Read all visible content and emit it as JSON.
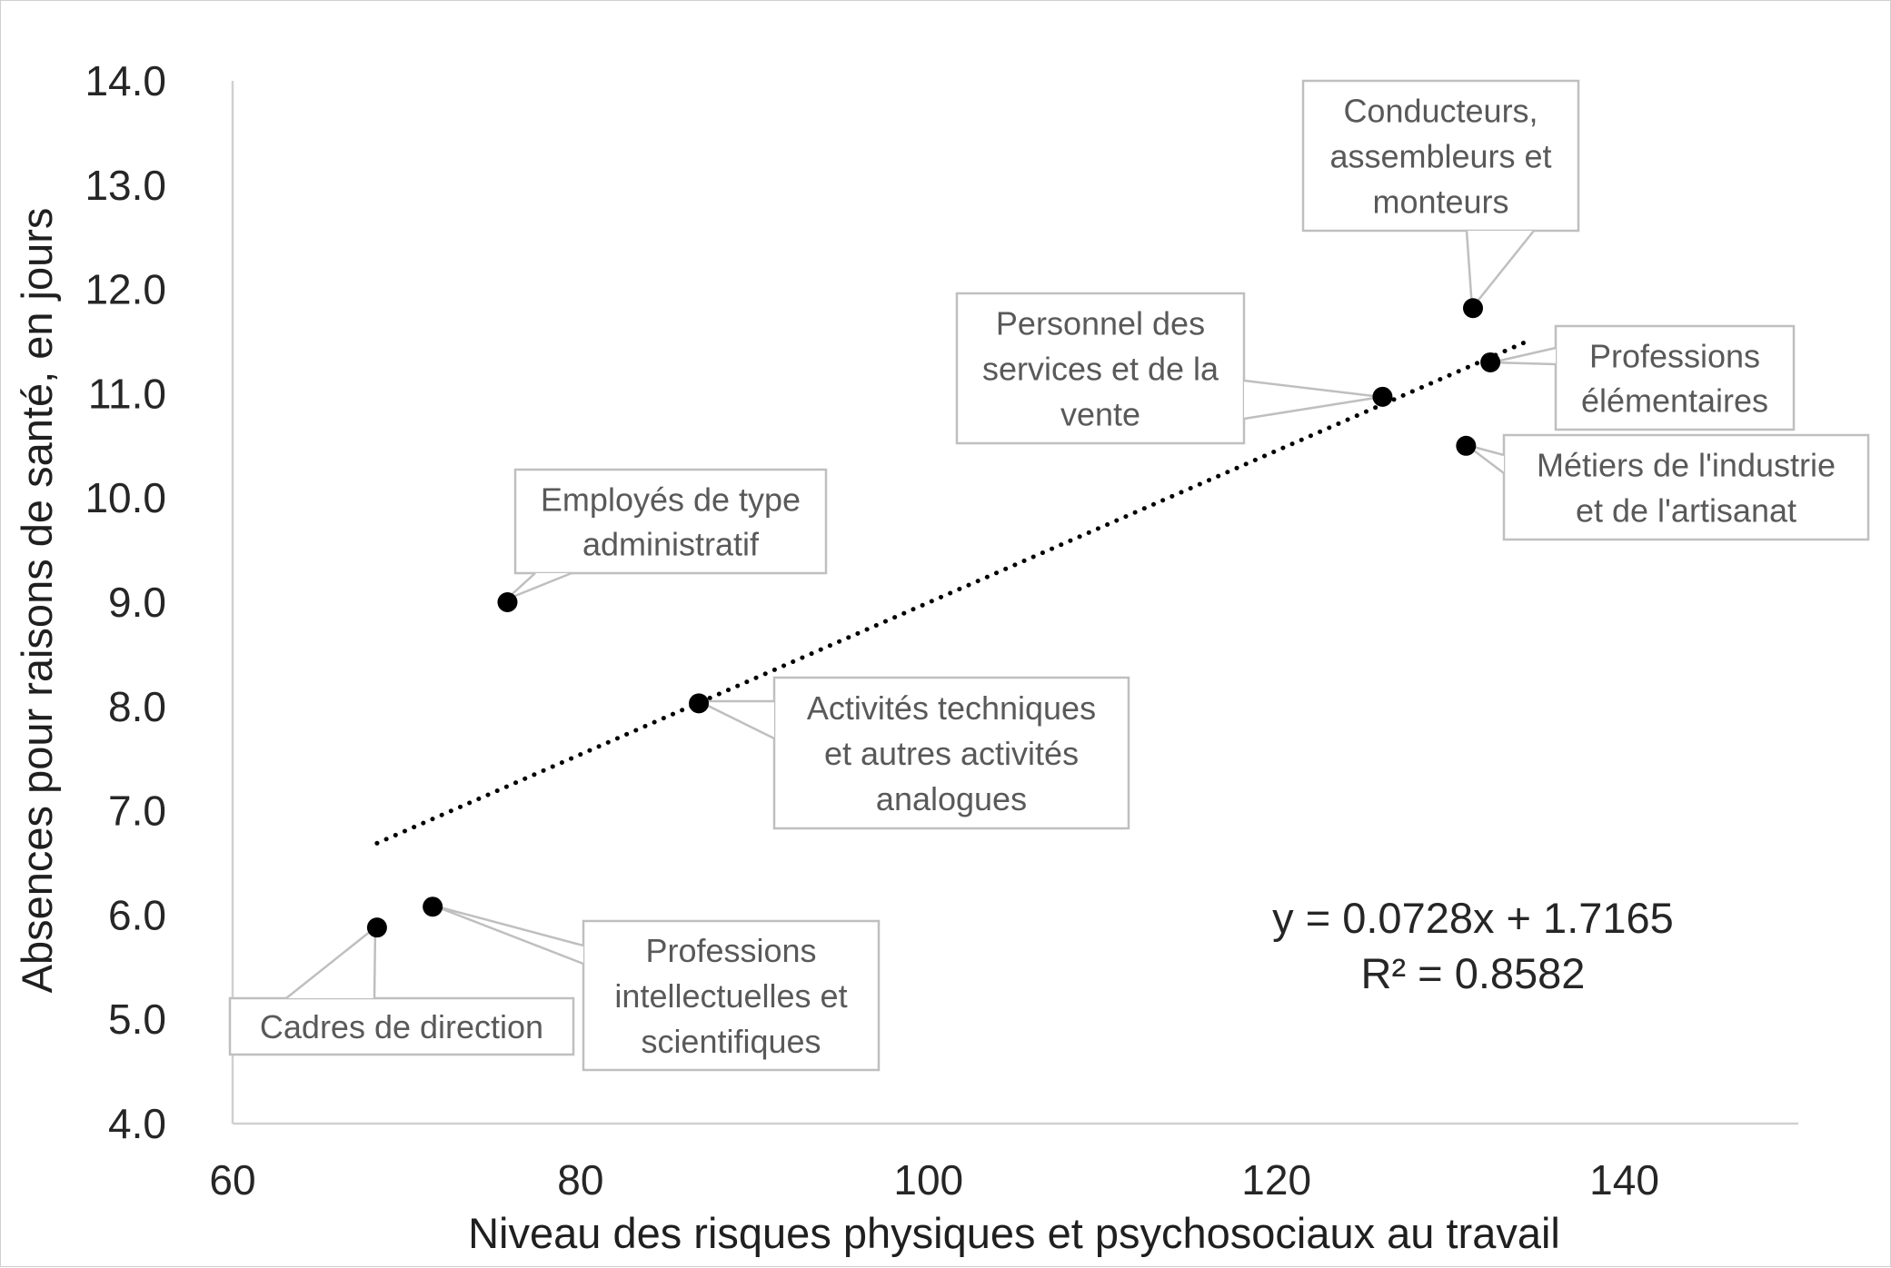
{
  "chart_data": {
    "type": "scatter",
    "title": "",
    "xlabel": "Niveau des risques physiques et psychosociaux au travail",
    "ylabel": "Absences pour raisons de santé, en jours",
    "xlim": [
      60,
      150
    ],
    "ylim": [
      4.0,
      14.0
    ],
    "x_ticks": [
      "60",
      "80",
      "100",
      "120",
      "140"
    ],
    "y_ticks": [
      "4.0",
      "5.0",
      "6.0",
      "7.0",
      "8.0",
      "9.0",
      "10.0",
      "11.0",
      "12.0",
      "13.0",
      "14.0"
    ],
    "grid": false,
    "legend": "none",
    "points": [
      {
        "label_lines": [
          "Cadres de direction"
        ],
        "x": 68.3,
        "y": 5.88
      },
      {
        "label_lines": [
          "Professions",
          "intellectuelles et",
          "scientifiques"
        ],
        "x": 71.5,
        "y": 6.08
      },
      {
        "label_lines": [
          "Employés de type",
          "administratif"
        ],
        "x": 75.8,
        "y": 9.0
      },
      {
        "label_lines": [
          "Activités techniques",
          "et autres activités",
          "analogues"
        ],
        "x": 86.8,
        "y": 8.03
      },
      {
        "label_lines": [
          "Personnel des",
          "services et de la",
          "vente"
        ],
        "x": 126.1,
        "y": 10.97
      },
      {
        "label_lines": [
          "Conducteurs,",
          "assembleurs et",
          "monteurs"
        ],
        "x": 131.3,
        "y": 11.82
      },
      {
        "label_lines": [
          "Professions",
          "élémentaires"
        ],
        "x": 132.3,
        "y": 11.3
      },
      {
        "label_lines": [
          "Métiers de l'industrie",
          "et de l'artisanat"
        ],
        "x": 130.9,
        "y": 10.5
      }
    ],
    "trendline": {
      "type": "linear",
      "slope": 0.0728,
      "intercept": 1.7165,
      "x_range": [
        68.3,
        134.3
      ],
      "equation_text": "y = 0.0728x + 1.7165",
      "r2_text": "R² = 0.8582"
    }
  },
  "colors": {
    "points": "#000000",
    "trendline": "#000000",
    "axis_line": "#d0d0d0",
    "callout_border": "#bfbfbf",
    "callout_text": "#595959",
    "tick_text": "#262626"
  }
}
